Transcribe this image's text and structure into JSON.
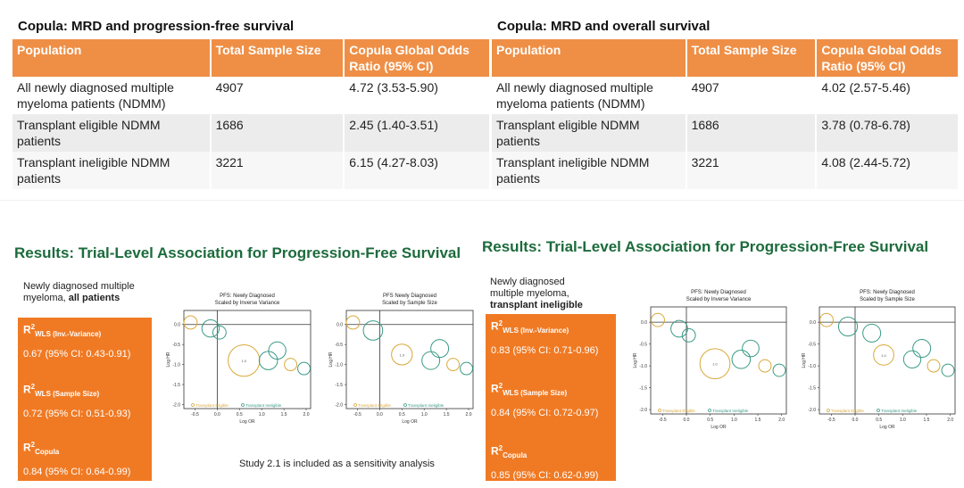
{
  "left_table": {
    "title": "Copula: MRD and progression-free survival",
    "headers": [
      "Population",
      "Total Sample Size",
      "Copula Global Odds Ratio (95% CI)"
    ],
    "rows": [
      [
        "All newly diagnosed multiple myeloma patients (NDMM)",
        "4907",
        "4.72 (3.53-5.90)"
      ],
      [
        "Transplant eligible NDMM patients",
        "1686",
        "2.45 (1.40-3.51)"
      ],
      [
        "Transplant ineligible NDMM patients",
        "3221",
        "6.15 (4.27-8.03)"
      ]
    ]
  },
  "right_table": {
    "title": "Copula: MRD and overall survival",
    "headers": [
      "Population",
      "Total Sample Size",
      "Copula Global Odds Ratio (95% CI)"
    ],
    "rows": [
      [
        "All newly diagnosed multiple myeloma patients (NDMM)",
        "4907",
        "4.02 (2.57-5.46)"
      ],
      [
        "Transplant eligible NDMM patients",
        "1686",
        "3.78 (0.78-6.78)"
      ],
      [
        "Transplant ineligible NDMM patients",
        "3221",
        "4.08 (2.44-5.72)"
      ]
    ]
  },
  "left_results": {
    "title": "Results: Trial-Level Association for Progression-Free Survival",
    "subtitle_plain": "Newly diagnosed multiple myeloma, ",
    "subtitle_bold": "all patients",
    "metrics": [
      {
        "r": "R",
        "sup": "2",
        "sub": "WLS (Inv.-Variance)",
        "value": "0.67 (95% CI: 0.43-0.91)"
      },
      {
        "r": "R",
        "sup": "2",
        "sub": "WLS (Sample Size)",
        "value": "0.72 (95% CI: 0.51-0.93)"
      },
      {
        "r": "R",
        "sup": "2",
        "sub": "Copula",
        "value": "0.84 (95% CI: 0.64-0.99)"
      }
    ],
    "note": "Study 2.1 is included as a sensitivity analysis"
  },
  "right_results": {
    "title": "Results: Trial-Level Association for Progression-Free Survival",
    "subtitle_plain": "Newly diagnosed multiple myeloma, ",
    "subtitle_bold": "transplant ineligible",
    "metrics": [
      {
        "r": "R",
        "sup": "2",
        "sub": "WLS (Inv.-Variance)",
        "value": "0.83 (95% CI: 0.71-0.96)"
      },
      {
        "r": "R",
        "sup": "2",
        "sub": "WLS (Sample Size)",
        "value": "0.84 (95% CI: 0.72-0.97)"
      },
      {
        "r": "R",
        "sup": "2",
        "sub": "Copula",
        "value": "0.85 (95% CI: 0.62-0.99)"
      }
    ]
  },
  "colors": {
    "header_orange": "#ef8f46",
    "panel_orange": "#f07a24",
    "title_green": "#1c6b3c",
    "eligible": "#d9a93a",
    "ineligible": "#3a9a86"
  },
  "chart_data": [
    {
      "type": "scatter",
      "title": "PFS: Newly Diagnosed Scaled by Inverse Variance",
      "xlabel": "Log OR",
      "ylabel": "Log HR",
      "xlim": [
        -0.75,
        2.1
      ],
      "ylim": [
        -2.1,
        0.35
      ],
      "xticks": [
        -0.5,
        0.0,
        0.5,
        1.0,
        1.5,
        2.0
      ],
      "yticks": [
        0.0,
        -0.5,
        -1.0,
        -1.5,
        -2.0
      ],
      "legend": [
        "Transplant Eligible",
        "Transplant Ineligible"
      ],
      "points": [
        {
          "x": -0.6,
          "y": 0.05,
          "w": 0.6,
          "group": "Transplant Eligible"
        },
        {
          "x": -0.15,
          "y": -0.1,
          "w": 1.2,
          "group": "Transplant Ineligible"
        },
        {
          "x": 0.05,
          "y": -0.2,
          "w": 0.6,
          "group": "Transplant Ineligible"
        },
        {
          "x": 0.6,
          "y": -0.9,
          "w": 5.0,
          "group": "Transplant Eligible",
          "label": "1.0"
        },
        {
          "x": 1.15,
          "y": -0.9,
          "w": 1.4,
          "group": "Transplant Ineligible"
        },
        {
          "x": 1.35,
          "y": -0.65,
          "w": 1.2,
          "group": "Transplant Ineligible"
        },
        {
          "x": 1.65,
          "y": -1.0,
          "w": 0.5,
          "group": "Transplant Eligible"
        },
        {
          "x": 1.95,
          "y": -1.1,
          "w": 0.5,
          "group": "Transplant Ineligible"
        }
      ]
    },
    {
      "type": "scatter",
      "title": "PFS Newly Diagnosed Scaled by Sample Size",
      "xlabel": "Log OR",
      "ylabel": "Log HR",
      "xlim": [
        -0.75,
        2.1
      ],
      "ylim": [
        -2.1,
        0.35
      ],
      "xticks": [
        -0.5,
        0.0,
        0.5,
        1.0,
        1.5,
        2.0
      ],
      "yticks": [
        0.0,
        -0.5,
        -1.0,
        -1.5,
        -2.0
      ],
      "legend": [
        "Transplant Eligible",
        "Transplant Ineligible"
      ],
      "points": [
        {
          "x": -0.6,
          "y": 0.05,
          "w": 0.6,
          "group": "Transplant Eligible"
        },
        {
          "x": -0.15,
          "y": -0.15,
          "w": 1.6,
          "group": "Transplant Ineligible"
        },
        {
          "x": 0.5,
          "y": -0.75,
          "w": 1.9,
          "group": "Transplant Eligible",
          "label": "1.0"
        },
        {
          "x": 1.15,
          "y": -0.9,
          "w": 1.3,
          "group": "Transplant Ineligible"
        },
        {
          "x": 1.35,
          "y": -0.6,
          "w": 1.3,
          "group": "Transplant Ineligible"
        },
        {
          "x": 1.65,
          "y": -1.0,
          "w": 0.5,
          "group": "Transplant Eligible"
        },
        {
          "x": 1.95,
          "y": -1.1,
          "w": 0.5,
          "group": "Transplant Ineligible"
        }
      ]
    },
    {
      "type": "scatter",
      "title": "PFS: Newly Diagnosed Scaled by Inverse Variance",
      "xlabel": "Log OR",
      "ylabel": "Log HR",
      "xlim": [
        -0.75,
        2.1
      ],
      "ylim": [
        -2.1,
        0.35
      ],
      "xticks": [
        -0.5,
        0.0,
        0.5,
        1.0,
        1.5,
        2.0
      ],
      "yticks": [
        0.0,
        -0.5,
        -1.0,
        -1.5,
        -2.0
      ],
      "legend": [
        "Transplant Eligible",
        "Transplant Ineligible"
      ],
      "points": [
        {
          "x": -0.6,
          "y": 0.05,
          "w": 0.6,
          "group": "Transplant Eligible"
        },
        {
          "x": -0.15,
          "y": -0.15,
          "w": 1.1,
          "group": "Transplant Ineligible"
        },
        {
          "x": 0.05,
          "y": -0.3,
          "w": 0.6,
          "group": "Transplant Ineligible"
        },
        {
          "x": 0.6,
          "y": -0.95,
          "w": 4.5,
          "group": "Transplant Eligible",
          "label": "1.0"
        },
        {
          "x": 1.15,
          "y": -0.85,
          "w": 1.4,
          "group": "Transplant Ineligible"
        },
        {
          "x": 1.35,
          "y": -0.6,
          "w": 1.1,
          "group": "Transplant Ineligible"
        },
        {
          "x": 1.65,
          "y": -1.0,
          "w": 0.5,
          "group": "Transplant Eligible"
        },
        {
          "x": 1.95,
          "y": -1.1,
          "w": 0.5,
          "group": "Transplant Ineligible"
        }
      ]
    },
    {
      "type": "scatter",
      "title": "PFS: Newly Diagnosed Scaled by Sample Size",
      "xlabel": "Log OR",
      "ylabel": "Log HR",
      "xlim": [
        -0.75,
        2.1
      ],
      "ylim": [
        -2.1,
        0.35
      ],
      "xticks": [
        -0.5,
        0.0,
        0.5,
        1.0,
        1.5,
        2.0
      ],
      "yticks": [
        0.0,
        -0.5,
        -1.0,
        -1.5,
        -2.0
      ],
      "legend": [
        "Transplant Eligible",
        "Transplant Ineligible"
      ],
      "points": [
        {
          "x": -0.6,
          "y": 0.05,
          "w": 0.6,
          "group": "Transplant Eligible"
        },
        {
          "x": -0.15,
          "y": -0.1,
          "w": 1.5,
          "group": "Transplant Ineligible"
        },
        {
          "x": 0.35,
          "y": -0.25,
          "w": 1.3,
          "group": "Transplant Ineligible"
        },
        {
          "x": 0.6,
          "y": -0.75,
          "w": 1.8,
          "group": "Transplant Eligible",
          "label": "1.0"
        },
        {
          "x": 1.2,
          "y": -0.85,
          "w": 1.2,
          "group": "Transplant Ineligible"
        },
        {
          "x": 1.4,
          "y": -0.6,
          "w": 1.3,
          "group": "Transplant Ineligible"
        },
        {
          "x": 1.65,
          "y": -1.0,
          "w": 0.5,
          "group": "Transplant Eligible"
        },
        {
          "x": 1.95,
          "y": -1.1,
          "w": 0.5,
          "group": "Transplant Ineligible"
        }
      ]
    }
  ]
}
